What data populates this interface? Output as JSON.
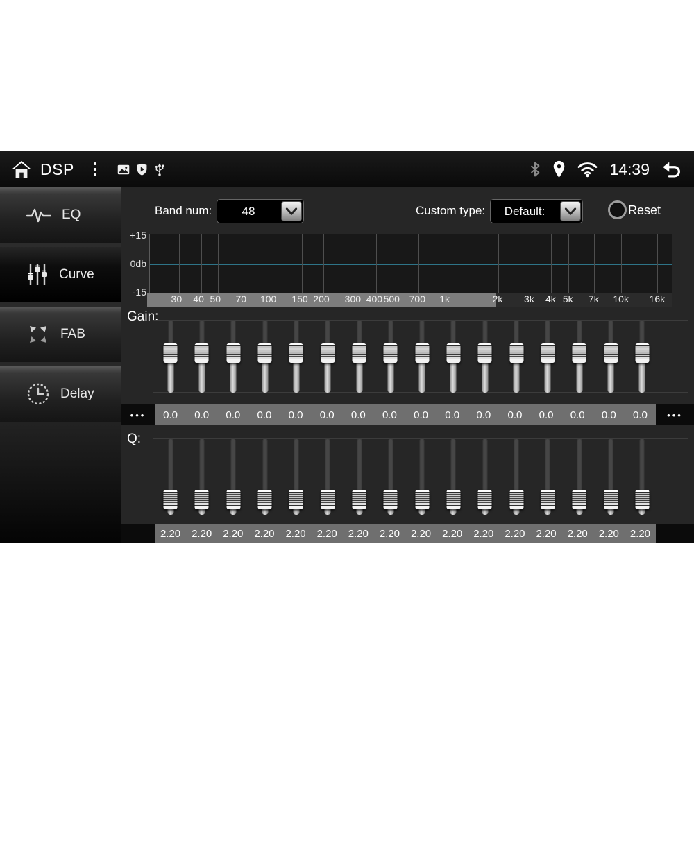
{
  "statusbar": {
    "title": "DSP",
    "time": "14:39",
    "left_icons": [
      "home-icon",
      "overflow-menu-icon",
      "gallery-icon",
      "shield-play-icon",
      "usb-icon"
    ],
    "right_icons": [
      "bluetooth-icon",
      "location-icon",
      "wifi-icon",
      "back-icon"
    ]
  },
  "sidebar": {
    "items": [
      {
        "id": "eq",
        "label": "EQ",
        "icon": "waveform-icon",
        "active": false
      },
      {
        "id": "curve",
        "label": "Curve",
        "icon": "faders-icon",
        "active": true
      },
      {
        "id": "fab",
        "label": "FAB",
        "icon": "fab-arrows-icon",
        "active": false
      },
      {
        "id": "delay",
        "label": "Delay",
        "icon": "clock-icon",
        "active": false
      }
    ]
  },
  "controls": {
    "band_num_label": "Band num:",
    "band_num_value": "48",
    "custom_type_label": "Custom type:",
    "custom_type_value": "Default:",
    "reset_label": "Reset"
  },
  "graph": {
    "y_labels": [
      "+15",
      "0db",
      "-15"
    ],
    "response_db": 0,
    "zero_line_color": "#2e7488",
    "scroll_highlight_end_pct": 66.5,
    "freq_ticks": [
      {
        "label": "30",
        "pct": 5.6
      },
      {
        "label": "40",
        "pct": 9.8
      },
      {
        "label": "50",
        "pct": 13.0
      },
      {
        "label": "70",
        "pct": 17.9
      },
      {
        "label": "100",
        "pct": 23.1
      },
      {
        "label": "150",
        "pct": 29.1
      },
      {
        "label": "200",
        "pct": 33.2
      },
      {
        "label": "300",
        "pct": 39.2
      },
      {
        "label": "400",
        "pct": 43.3
      },
      {
        "label": "500",
        "pct": 46.6
      },
      {
        "label": "700",
        "pct": 51.5
      },
      {
        "label": "1k",
        "pct": 56.7
      },
      {
        "label": "2k",
        "pct": 66.8
      },
      {
        "label": "3k",
        "pct": 72.8
      },
      {
        "label": "4k",
        "pct": 76.9
      },
      {
        "label": "5k",
        "pct": 80.2
      },
      {
        "label": "7k",
        "pct": 85.1
      },
      {
        "label": "10k",
        "pct": 90.3
      },
      {
        "label": "16k",
        "pct": 97.2
      }
    ]
  },
  "gain": {
    "label": "Gain:",
    "more_indicator": "•••",
    "thumb_pct": 46,
    "values": [
      "0.0",
      "0.0",
      "0.0",
      "0.0",
      "0.0",
      "0.0",
      "0.0",
      "0.0",
      "0.0",
      "0.0",
      "0.0",
      "0.0",
      "0.0",
      "0.0",
      "0.0",
      "0.0"
    ]
  },
  "q": {
    "label": "Q:",
    "thumb_pct": 80,
    "values": [
      "2.20",
      "2.20",
      "2.20",
      "2.20",
      "2.20",
      "2.20",
      "2.20",
      "2.20",
      "2.20",
      "2.20",
      "2.20",
      "2.20",
      "2.20",
      "2.20",
      "2.20",
      "2.20"
    ]
  }
}
